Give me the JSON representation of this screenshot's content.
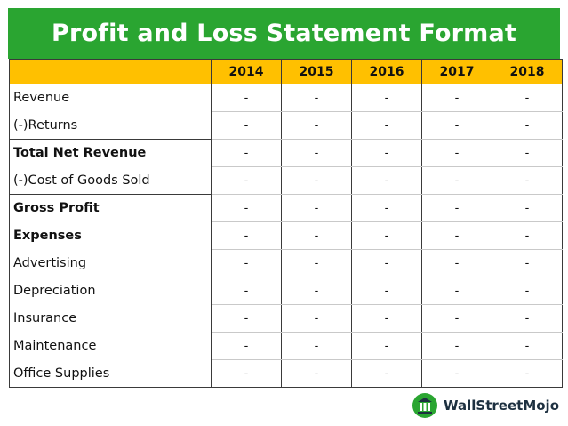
{
  "title": "Profit and Loss Statement Format",
  "table": {
    "header_label": "",
    "years": [
      "2014",
      "2015",
      "2016",
      "2017",
      "2018"
    ],
    "rows": [
      {
        "label": "Revenue",
        "bold": false,
        "values": [
          "-",
          "-",
          "-",
          "-",
          "-"
        ]
      },
      {
        "label": "(-)Returns",
        "bold": false,
        "values": [
          "-",
          "-",
          "-",
          "-",
          "-"
        ]
      },
      {
        "label": "Total Net Revenue",
        "bold": true,
        "values": [
          "-",
          "-",
          "-",
          "-",
          "-"
        ]
      },
      {
        "label": "(-)Cost of Goods Sold",
        "bold": false,
        "values": [
          "-",
          "-",
          "-",
          "-",
          "-"
        ]
      },
      {
        "label": "Gross Profit",
        "bold": true,
        "values": [
          "-",
          "-",
          "-",
          "-",
          "-"
        ]
      },
      {
        "label": "Expenses",
        "bold": true,
        "values": [
          "-",
          "-",
          "-",
          "-",
          "-"
        ]
      },
      {
        "label": "Advertising",
        "bold": false,
        "values": [
          "-",
          "-",
          "-",
          "-",
          "-"
        ]
      },
      {
        "label": "Depreciation",
        "bold": false,
        "values": [
          "-",
          "-",
          "-",
          "-",
          "-"
        ]
      },
      {
        "label": "Insurance",
        "bold": false,
        "values": [
          "-",
          "-",
          "-",
          "-",
          "-"
        ]
      },
      {
        "label": "Maintenance",
        "bold": false,
        "values": [
          "-",
          "-",
          "-",
          "-",
          "-"
        ]
      },
      {
        "label": "Office Supplies",
        "bold": false,
        "values": [
          "-",
          "-",
          "-",
          "-",
          "-"
        ]
      }
    ]
  },
  "brand": {
    "name": "WallStreetMojo",
    "icon": "wallstreetmojo-logo-icon"
  },
  "colors": {
    "banner": "#2aa531",
    "header_fill": "#ffc000",
    "title_text": "#ffffff",
    "brand_text": "#1d3040",
    "brand_green": "#2aa531"
  }
}
